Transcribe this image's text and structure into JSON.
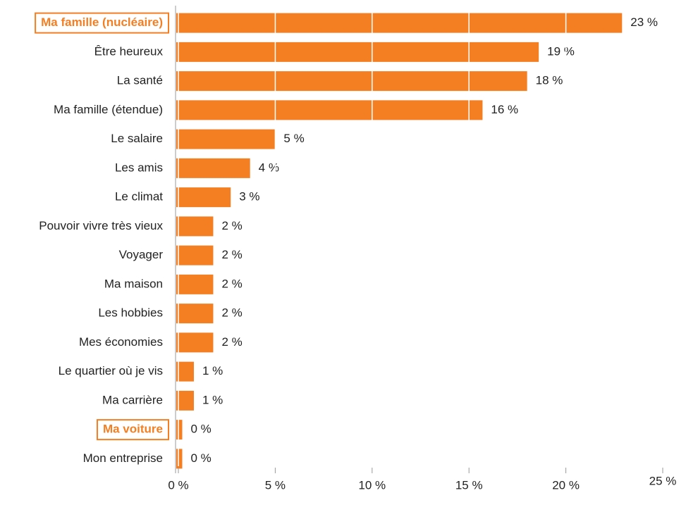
{
  "chart_data": {
    "type": "hbar",
    "categories": [
      "Ma famille (nucléaire)",
      "Être heureux",
      "La santé",
      "Ma famille (étendue)",
      "Le salaire",
      "Les amis",
      "Le climat",
      "Pouvoir vivre très vieux",
      "Voyager",
      "Ma maison",
      "Les hobbies",
      "Mes économies",
      "Le quartier où je vis",
      "Ma carrière",
      "Ma voiture",
      "Mon entreprise"
    ],
    "values": [
      22.9,
      18.6,
      18.0,
      15.7,
      5.0,
      3.7,
      2.7,
      1.8,
      1.8,
      1.8,
      1.8,
      1.8,
      0.8,
      0.8,
      0.2,
      0.2
    ],
    "value_labels": [
      "23 %",
      "19 %",
      "18 %",
      "16 %",
      "5 %",
      "4 %",
      "3 %",
      "2 %",
      "2 %",
      "2 %",
      "2 %",
      "2 %",
      "1 %",
      "1 %",
      "0 %",
      "0 %"
    ],
    "color": "#f47f23",
    "highlight": [
      0,
      14
    ],
    "xlim": [
      0,
      25
    ],
    "xticks": [
      {
        "value": 0,
        "label": "0 %"
      },
      {
        "value": 5,
        "label": "5 %"
      },
      {
        "value": 10,
        "label": "10 %"
      },
      {
        "value": 15,
        "label": "15 %"
      },
      {
        "value": 20,
        "label": "20 %"
      },
      {
        "value": 25,
        "label": "25 %"
      }
    ],
    "grid": true
  }
}
